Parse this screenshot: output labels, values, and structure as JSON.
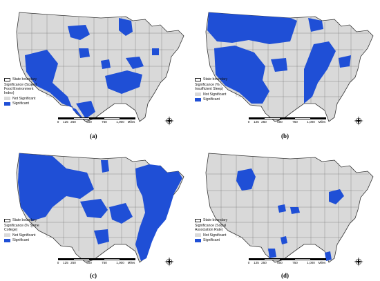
{
  "panels": [
    {
      "id": "a",
      "caption": "(a)",
      "legend": {
        "boundary_label": "State boundary",
        "title": "Significance (Scaled Food Environment Index)",
        "not_significant": "Not Significant",
        "significant": "Significant"
      }
    },
    {
      "id": "b",
      "caption": "(b)",
      "legend": {
        "boundary_label": "State boundary",
        "title": "Significance (% Insufficient Sleep)",
        "not_significant": "Not Significant",
        "significant": "Significant"
      }
    },
    {
      "id": "c",
      "caption": "(c)",
      "legend": {
        "boundary_label": "State boundary",
        "title": "Significance (% Some College)",
        "not_significant": "Not Significant",
        "significant": "Significant"
      }
    },
    {
      "id": "d",
      "caption": "(d)",
      "legend": {
        "boundary_label": "State boundary",
        "title": "Significance (Social Association Rate)",
        "not_significant": "Not Significant",
        "significant": "Significant"
      }
    }
  ],
  "scale": {
    "ticks": [
      "0",
      "125",
      "250",
      "500",
      "750",
      "1,000"
    ],
    "unit": "Miles"
  },
  "colors": {
    "not_significant": "#d9d9d9",
    "significant": "#1f4fd6",
    "boundary": "#333333"
  }
}
